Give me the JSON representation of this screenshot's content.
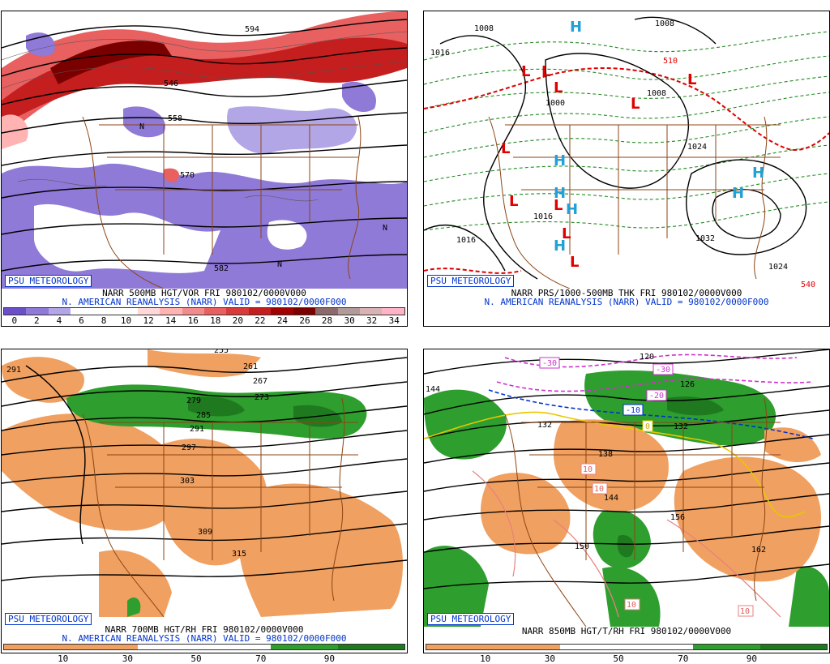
{
  "panels": [
    {
      "id": "vor500",
      "badge": "PSU METEOROLOGY",
      "title": "NARR 500MB HGT/VOR FRI 980102/0000V000",
      "subtitle": "N. AMERICAN REANALYSIS (NARR) VALID = 980102/0000F000",
      "scale_ticks": [
        "0",
        "2",
        "4",
        "6",
        "8",
        "10",
        "12",
        "14",
        "16",
        "18",
        "20",
        "22",
        "24",
        "26",
        "28",
        "30",
        "32",
        "34"
      ],
      "scale_colors": [
        "#6b4fc8",
        "#8f7ad8",
        "#b3a6e6",
        "#ffffff",
        "#ffffff",
        "#ffffff",
        "#ffd9d9",
        "#ffb3b3",
        "#f28c8c",
        "#e86060",
        "#d93a3a",
        "#c41e1e",
        "#a00000",
        "#7a0000",
        "#8a6a6a",
        "#b39a9a",
        "#d9b3b3",
        "#ffb3c6"
      ],
      "map_labels": [
        "546",
        "558",
        "570",
        "582",
        "594",
        "N",
        "N",
        "N"
      ]
    },
    {
      "id": "prs1000",
      "badge": "PSU METEOROLOGY",
      "title": "NARR PRS/1000-500MB THK FRI 980102/0000V000",
      "subtitle": "N. AMERICAN REANALYSIS (NARR) VALID = 980102/0000F000",
      "map_labels": [
        "1008",
        "1008",
        "1016",
        "1016",
        "1016",
        "1024",
        "1024",
        "1032",
        "1000",
        "1008",
        "510",
        "540",
        "H",
        "L"
      ]
    },
    {
      "id": "rh700",
      "badge": "PSU METEOROLOGY",
      "title": "NARR 700MB HGT/RH FRI 980102/0000V000",
      "subtitle": "N. AMERICAN REANALYSIS (NARR) VALID = 980102/0000F000",
      "scale_ticks": [
        "10",
        "30",
        "50",
        "70",
        "90"
      ],
      "map_labels": [
        "255",
        "261",
        "267",
        "273",
        "279",
        "285",
        "291",
        "291",
        "297",
        "303",
        "309",
        "315"
      ]
    },
    {
      "id": "t850",
      "badge": "PSU METEOROLOGY",
      "title": "NARR 850MB HGT/T/RH FRI 980102/0000V000",
      "subtitle": "",
      "scale_ticks": [
        "10",
        "30",
        "50",
        "70",
        "90"
      ],
      "map_labels": [
        "120",
        "126",
        "132",
        "132",
        "138",
        "144",
        "144",
        "150",
        "156",
        "162",
        "-30",
        "-30",
        "-20",
        "-10",
        "0",
        "10",
        "10",
        "10",
        "10"
      ]
    }
  ]
}
